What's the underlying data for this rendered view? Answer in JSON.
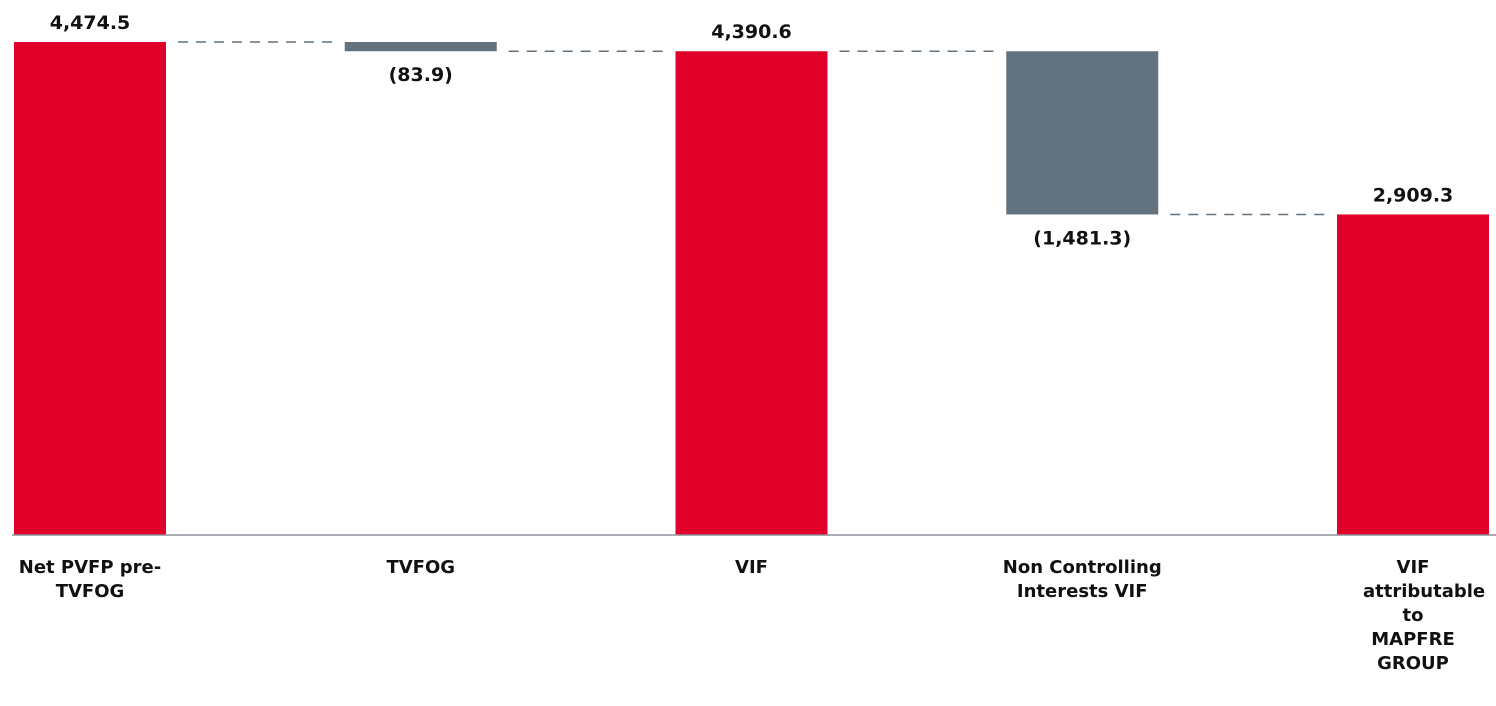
{
  "chart_data": {
    "type": "waterfall",
    "categories": [
      "Net PVFP pre-TVFOG",
      "TVFOG",
      "VIF",
      "Non Controlling Interests VIF",
      "VIF attributable to MAPFRE GROUP"
    ],
    "values": [
      4474.5,
      -83.9,
      4390.6,
      -1481.3,
      2909.3
    ],
    "value_labels": [
      "4,474.5",
      "(83.9)",
      "4,390.6",
      "(1,481.3)",
      "2,909.3"
    ],
    "measure": [
      "absolute",
      "relative",
      "absolute",
      "relative",
      "absolute"
    ],
    "colors": [
      "#e0002a",
      "#62727e",
      "#e0002a",
      "#62727e",
      "#e0002a"
    ],
    "ylim": [
      0,
      4474.5
    ]
  }
}
